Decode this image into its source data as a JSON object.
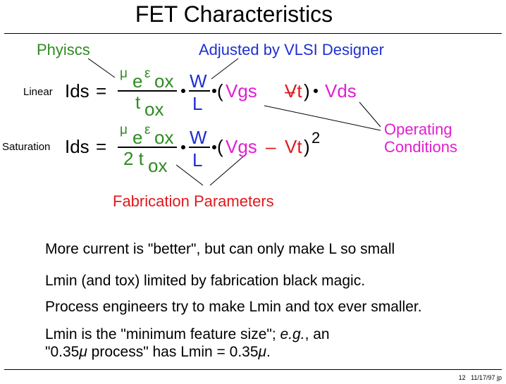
{
  "title": "FET Characteristics",
  "labels": {
    "physics": "Phyiscs",
    "designer": "Adjusted by VLSI Designer",
    "operating_line1": "Operating",
    "operating_line2": "Conditions",
    "fabrication": "Fabrication Parameters"
  },
  "equations": {
    "linear": {
      "label": "Linear",
      "lhs": "Ids",
      "equals": "=",
      "mu": "μ",
      "e": "e",
      "epsilon": "ε",
      "ox": "ox",
      "t": "t",
      "tox_sub": "ox",
      "W": "W",
      "L": "L",
      "open": "(",
      "vgs": "Vgs",
      "minus": "–",
      "vt": "Vt",
      "close": ")",
      "vds": "Vds"
    },
    "saturation": {
      "label": "Saturation",
      "lhs": "Ids",
      "equals": "=",
      "mu": "μ",
      "e": "e",
      "epsilon": "ε",
      "ox": "ox",
      "two_t": "2 t",
      "tox_sub": "ox",
      "W": "W",
      "L": "L",
      "open": "(",
      "vgs": "Vgs",
      "minus": "–",
      "vt": "Vt",
      "close": ")",
      "power": "2"
    }
  },
  "bullets": {
    "b1": "More current is \"better\", but can only make L so small",
    "b2": "Lmin (and tox)  limited by fabrication black magic.",
    "b3": "Process engineers try to make Lmin and tox ever smaller.",
    "b4_part1": "Lmin is the \"minimum feature size\"; ",
    "b4_eg": "e.g.",
    "b4_part2": ",  an",
    "b5_part1": "\"0.35",
    "b5_mu1": "μ",
    "b5_part2": " process\" has Lmin = 0.35",
    "b5_mu2": "μ",
    "b5_end": "."
  },
  "footer": {
    "page": "12",
    "date": "11/17/97",
    "initials": "jp"
  },
  "colors": {
    "green": "#2e8b22",
    "blue": "#1f2fd0",
    "red": "#e0181c",
    "magenta": "#e01fd0"
  }
}
